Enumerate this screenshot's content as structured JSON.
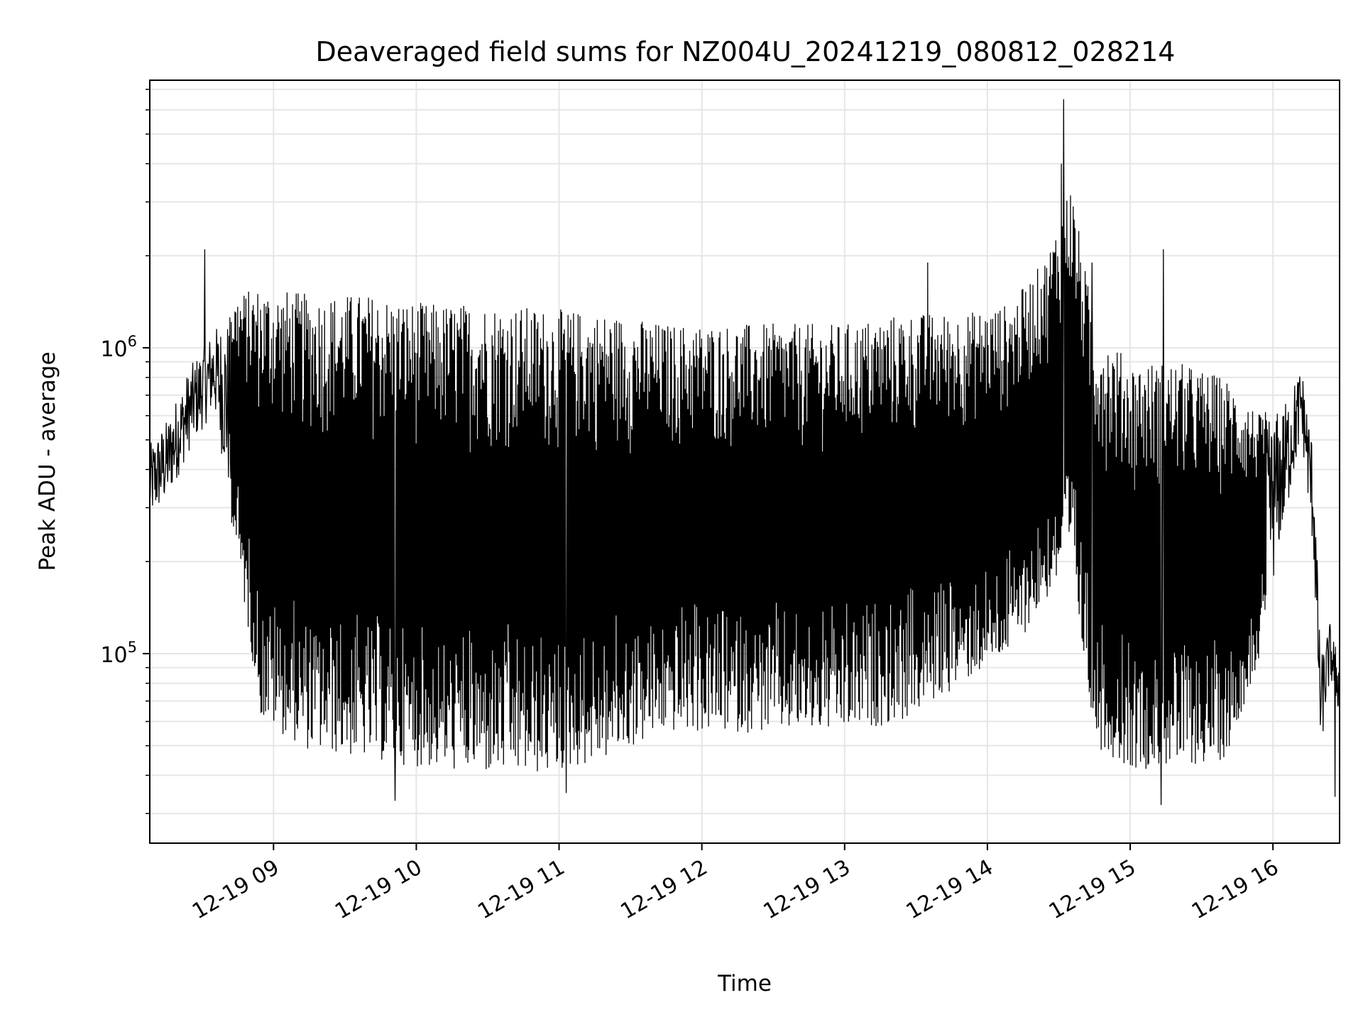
{
  "chart_data": {
    "type": "line",
    "title": "Deaveraged field sums for NZ004U_20241219_080812_028214",
    "xlabel": "Time",
    "ylabel": "Peak ADU - average",
    "yscale": "log",
    "grid": true,
    "legend": "none",
    "line_color": "#000000",
    "grid_color": "#e6e6e6",
    "xlim": [
      "2024-12-19 08:08",
      "2024-12-19 16:28"
    ],
    "ylim": [
      24000,
      7500000
    ],
    "x_ticks": [
      {
        "value": "2024-12-19 09:00",
        "label": "12-19 09"
      },
      {
        "value": "2024-12-19 10:00",
        "label": "12-19 10"
      },
      {
        "value": "2024-12-19 11:00",
        "label": "12-19 11"
      },
      {
        "value": "2024-12-19 12:00",
        "label": "12-19 12"
      },
      {
        "value": "2024-12-19 13:00",
        "label": "12-19 13"
      },
      {
        "value": "2024-12-19 14:00",
        "label": "12-19 14"
      },
      {
        "value": "2024-12-19 15:00",
        "label": "12-19 15"
      },
      {
        "value": "2024-12-19 16:00",
        "label": "12-19 16"
      }
    ],
    "y_ticks": [
      {
        "value": 100000,
        "base": "10",
        "exp": "5"
      },
      {
        "value": 1000000,
        "base": "10",
        "exp": "6"
      }
    ],
    "series": [
      {
        "envelope": [
          {
            "x": "2024-12-19 08:08",
            "low": 260000,
            "high": 500000
          },
          {
            "x": "2024-12-19 08:15",
            "low": 300000,
            "high": 600000
          },
          {
            "x": "2024-12-19 08:25",
            "low": 450000,
            "high": 900000
          },
          {
            "x": "2024-12-19 08:35",
            "low": 600000,
            "high": 1200000
          },
          {
            "x": "2024-12-19 08:45",
            "low": 200000,
            "high": 1500000
          },
          {
            "x": "2024-12-19 08:55",
            "low": 60000,
            "high": 1600000
          },
          {
            "x": "2024-12-19 09:15",
            "low": 48000,
            "high": 1500000
          },
          {
            "x": "2024-12-19 09:40",
            "low": 45000,
            "high": 1500000
          },
          {
            "x": "2024-12-19 10:05",
            "low": 42000,
            "high": 1400000
          },
          {
            "x": "2024-12-19 10:30",
            "low": 40000,
            "high": 1400000
          },
          {
            "x": "2024-12-19 10:55",
            "low": 40000,
            "high": 1350000
          },
          {
            "x": "2024-12-19 11:20",
            "low": 45000,
            "high": 1300000
          },
          {
            "x": "2024-12-19 11:45",
            "low": 55000,
            "high": 1200000
          },
          {
            "x": "2024-12-19 12:10",
            "low": 55000,
            "high": 1200000
          },
          {
            "x": "2024-12-19 12:35",
            "low": 55000,
            "high": 1200000
          },
          {
            "x": "2024-12-19 13:00",
            "low": 55000,
            "high": 1200000
          },
          {
            "x": "2024-12-19 13:25",
            "low": 60000,
            "high": 1300000
          },
          {
            "x": "2024-12-19 13:50",
            "low": 80000,
            "high": 1300000
          },
          {
            "x": "2024-12-19 14:10",
            "low": 100000,
            "high": 1400000
          },
          {
            "x": "2024-12-19 14:25",
            "low": 150000,
            "high": 2000000
          },
          {
            "x": "2024-12-19 14:35",
            "low": 200000,
            "high": 3500000
          },
          {
            "x": "2024-12-19 14:45",
            "low": 50000,
            "high": 1200000
          },
          {
            "x": "2024-12-19 15:00",
            "low": 42000,
            "high": 900000
          },
          {
            "x": "2024-12-19 15:20",
            "low": 42000,
            "high": 900000
          },
          {
            "x": "2024-12-19 15:40",
            "low": 45000,
            "high": 800000
          },
          {
            "x": "2024-12-19 15:55",
            "low": 100000,
            "high": 600000
          },
          {
            "x": "2024-12-19 16:05",
            "low": 250000,
            "high": 700000
          },
          {
            "x": "2024-12-19 16:12",
            "low": 500000,
            "high": 900000
          },
          {
            "x": "2024-12-19 16:17",
            "low": 200000,
            "high": 500000
          },
          {
            "x": "2024-12-19 16:20",
            "low": 45000,
            "high": 100000
          },
          {
            "x": "2024-12-19 16:24",
            "low": 80000,
            "high": 130000
          },
          {
            "x": "2024-12-19 16:28",
            "low": 60000,
            "high": 100000
          }
        ],
        "spikes": [
          {
            "x": "2024-12-19 08:31",
            "value": 2100000
          },
          {
            "x": "2024-12-19 14:32",
            "value": 6500000
          },
          {
            "x": "2024-12-19 14:31",
            "value": 4000000
          },
          {
            "x": "2024-12-19 15:14",
            "value": 2100000
          },
          {
            "x": "2024-12-19 13:35",
            "value": 1900000
          },
          {
            "x": "2024-12-19 14:44",
            "value": 1900000
          },
          {
            "x": "2024-12-19 09:51",
            "value": 33000
          },
          {
            "x": "2024-12-19 15:13",
            "value": 32000
          },
          {
            "x": "2024-12-19 16:26",
            "value": 34000
          },
          {
            "x": "2024-12-19 11:03",
            "value": 35000
          }
        ]
      }
    ]
  }
}
